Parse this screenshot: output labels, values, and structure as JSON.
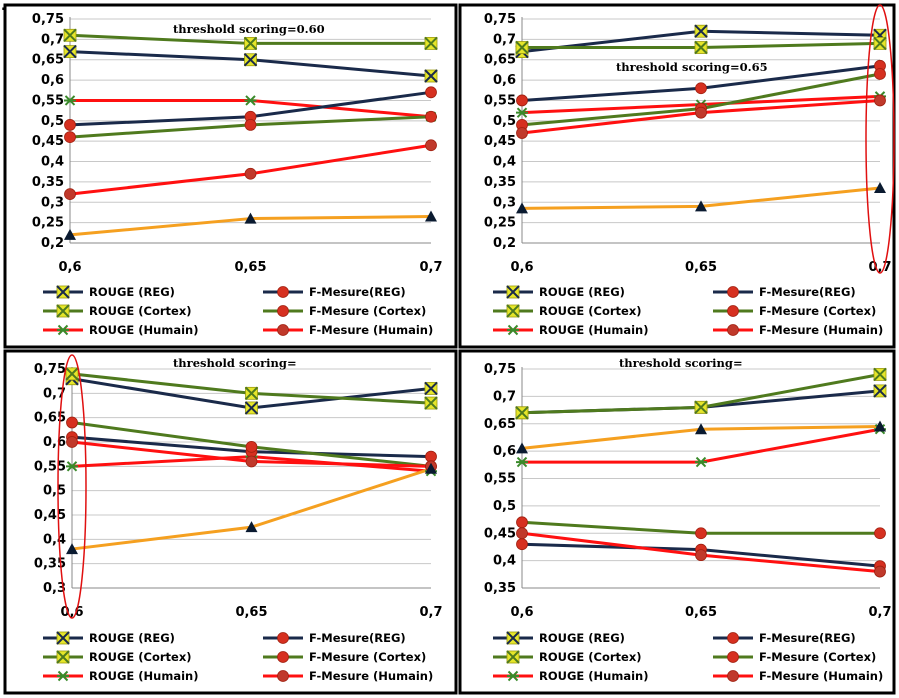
{
  "figure": {
    "corner_dot": "."
  },
  "chart_data": [
    {
      "type": "line",
      "annotation": "threshold scoring=0.60",
      "categories": [
        "0,6",
        "0,65",
        "0,7"
      ],
      "ylim": [
        0.2,
        0.75
      ],
      "yticks": [
        "0,2",
        "0,25",
        "0,3",
        "0,35",
        "0,4",
        "0,45",
        "0,5",
        "0,55",
        "0,6",
        "0,65",
        "0,7",
        "0,75"
      ],
      "series": [
        {
          "name": "ROUGE (REG)",
          "values": [
            0.67,
            0.65,
            0.61
          ],
          "color": "#1a2a4a",
          "marker": "x-square"
        },
        {
          "name": "ROUGE (Cortex)",
          "values": [
            0.71,
            0.69,
            0.69
          ],
          "color": "#4f7a1e",
          "marker": "x-square"
        },
        {
          "name": "ROUGE (Humain)",
          "values": [
            0.55,
            0.55,
            0.51
          ],
          "color": "#ff1010",
          "marker": "asterisk"
        },
        {
          "name": "F-Mesure(REG)",
          "values": [
            0.49,
            0.51,
            0.57
          ],
          "color": "#1a2a4a",
          "marker": "dot"
        },
        {
          "name": "F-Mesure (Cortex)",
          "values": [
            0.46,
            0.49,
            0.51
          ],
          "color": "#4f7a1e",
          "marker": "dot"
        },
        {
          "name": "F-Mesure (Humain)",
          "values": [
            0.32,
            0.37,
            0.44
          ],
          "color": "#ff1010",
          "marker": "dot"
        },
        {
          "name": "",
          "values": [
            0.22,
            0.26,
            0.265
          ],
          "color": "#f5a020",
          "marker": "triangle"
        }
      ],
      "ellipse_at": null
    },
    {
      "type": "line",
      "annotation": "threshold scoring=0.65",
      "categories": [
        "0,6",
        "0,65",
        "0,7"
      ],
      "ylim": [
        0.2,
        0.75
      ],
      "yticks": [
        "0,2",
        "0,25",
        "0,3",
        "0,35",
        "0,4",
        "0,45",
        "0,5",
        "0,55",
        "0,6",
        "0,65",
        "0,7",
        "0,75"
      ],
      "series": [
        {
          "name": "ROUGE (REG)",
          "values": [
            0.67,
            0.72,
            0.71
          ],
          "color": "#1a2a4a",
          "marker": "x-square"
        },
        {
          "name": "ROUGE (Cortex)",
          "values": [
            0.68,
            0.68,
            0.69
          ],
          "color": "#4f7a1e",
          "marker": "x-square"
        },
        {
          "name": "ROUGE (Humain)",
          "values": [
            0.52,
            0.54,
            0.56
          ],
          "color": "#ff1010",
          "marker": "asterisk"
        },
        {
          "name": "F-Mesure(REG)",
          "values": [
            0.55,
            0.58,
            0.635
          ],
          "color": "#1a2a4a",
          "marker": "dot"
        },
        {
          "name": "F-Mesure (Cortex)",
          "values": [
            0.49,
            0.53,
            0.615
          ],
          "color": "#4f7a1e",
          "marker": "dot"
        },
        {
          "name": "F-Mesure (Humain)",
          "values": [
            0.47,
            0.52,
            0.55
          ],
          "color": "#ff1010",
          "marker": "dot"
        },
        {
          "name": "",
          "values": [
            0.285,
            0.29,
            0.335
          ],
          "color": "#f5a020",
          "marker": "triangle"
        }
      ],
      "ellipse_at": "0,7"
    },
    {
      "type": "line",
      "annotation": "threshold scoring=",
      "categories": [
        "0,6",
        "0,65",
        "0,7"
      ],
      "ylim": [
        0.3,
        0.75
      ],
      "yticks": [
        "0,3",
        "0,35",
        "0,4",
        "0,45",
        "0,5",
        "0,55",
        "0,6",
        "0,65",
        "0,7",
        "0,75"
      ],
      "series": [
        {
          "name": "ROUGE (REG)",
          "values": [
            0.73,
            0.67,
            0.71
          ],
          "color": "#1a2a4a",
          "marker": "x-square"
        },
        {
          "name": "ROUGE (Cortex)",
          "values": [
            0.74,
            0.7,
            0.68
          ],
          "color": "#4f7a1e",
          "marker": "x-square"
        },
        {
          "name": "ROUGE (Humain)",
          "values": [
            0.55,
            0.57,
            0.54
          ],
          "color": "#ff1010",
          "marker": "asterisk"
        },
        {
          "name": "F-Mesure(REG)",
          "values": [
            0.61,
            0.58,
            0.57
          ],
          "color": "#1a2a4a",
          "marker": "dot"
        },
        {
          "name": "F-Mesure (Cortex)",
          "values": [
            0.64,
            0.59,
            0.55
          ],
          "color": "#4f7a1e",
          "marker": "dot"
        },
        {
          "name": "F-Mesure (Humain)",
          "values": [
            0.6,
            0.56,
            0.55
          ],
          "color": "#ff1010",
          "marker": "dot"
        },
        {
          "name": "",
          "values": [
            0.38,
            0.425,
            0.545
          ],
          "color": "#f5a020",
          "marker": "triangle"
        }
      ],
      "ellipse_at": "0,6"
    },
    {
      "type": "line",
      "annotation": "threshold scoring=",
      "categories": [
        "0,6",
        "0,65",
        "0,7"
      ],
      "ylim": [
        0.35,
        0.75
      ],
      "yticks": [
        "0,35",
        "0,4",
        "0,45",
        "0,5",
        "0,55",
        "0,6",
        "0,65",
        "0,7",
        "0,75"
      ],
      "series": [
        {
          "name": "ROUGE (REG)",
          "values": [
            0.67,
            0.68,
            0.71
          ],
          "color": "#1a2a4a",
          "marker": "x-square"
        },
        {
          "name": "ROUGE (Cortex)",
          "values": [
            0.67,
            0.68,
            0.74
          ],
          "color": "#4f7a1e",
          "marker": "x-square"
        },
        {
          "name": "ROUGE (Humain)",
          "values": [
            0.58,
            0.58,
            0.64
          ],
          "color": "#ff1010",
          "marker": "asterisk"
        },
        {
          "name": "F-Mesure(REG)",
          "values": [
            0.43,
            0.42,
            0.39
          ],
          "color": "#1a2a4a",
          "marker": "dot"
        },
        {
          "name": "F-Mesure (Cortex)",
          "values": [
            0.47,
            0.45,
            0.45
          ],
          "color": "#4f7a1e",
          "marker": "dot"
        },
        {
          "name": "F-Mesure (Humain)",
          "values": [
            0.45,
            0.41,
            0.38
          ],
          "color": "#ff1010",
          "marker": "dot"
        },
        {
          "name": "",
          "values": [
            0.605,
            0.64,
            0.645
          ],
          "color": "#f5a020",
          "marker": "triangle"
        }
      ],
      "ellipse_at": null
    }
  ]
}
